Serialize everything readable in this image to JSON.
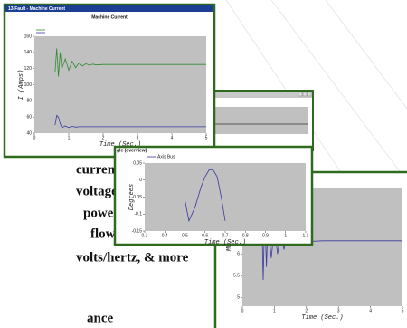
{
  "window_titles": [
    "13-Fault - Machine Current"
  ],
  "background_text": [
    "current",
    "voltage",
    "power",
    "flow",
    "volts/hertz, & more",
    "ance"
  ],
  "chart_data": [
    {
      "type": "line",
      "title": "Machine Current",
      "ylabel": "I (Amps)",
      "xlabel": "Time (Sec.)",
      "xlim": [
        0,
        5
      ],
      "xticks": [
        0,
        1,
        2,
        3,
        4,
        5
      ],
      "ylim": [
        40,
        160
      ],
      "yticks": [
        40,
        60,
        80,
        100,
        120,
        140,
        160
      ],
      "x": [
        0.6,
        0.65,
        0.7,
        0.75,
        0.8,
        0.9,
        1.0,
        1.1,
        1.2,
        1.3,
        1.4,
        1.5,
        1.6,
        1.7,
        1.8,
        2.0,
        2.5,
        3,
        4,
        5
      ],
      "series": [
        {
          "color": "#2e8b2e",
          "values": [
            115,
            145,
            110,
            140,
            120,
            132,
            118,
            129,
            121,
            127,
            123,
            126,
            124,
            125.5,
            124.5,
            125,
            125,
            125,
            125,
            125
          ]
        },
        {
          "color": "#3a3aa0",
          "values": [
            50,
            62,
            60,
            52,
            47,
            49,
            47,
            48.5,
            47.5,
            48,
            48,
            48,
            48,
            48,
            48,
            48,
            48,
            48,
            48,
            48
          ]
        }
      ]
    },
    {
      "type": "line",
      "title": "gle (overview)",
      "ylabel": "Degrees",
      "xlabel": "Time (Sec.)",
      "xlim": [
        0.3,
        1.1
      ],
      "xticks": [
        0.3,
        0.4,
        0.5,
        0.6,
        0.7,
        0.8,
        0.9,
        1,
        1.1
      ],
      "ylim": [
        -0.15,
        0.05
      ],
      "yticks": [
        -0.15,
        -0.1,
        -0.05,
        0,
        0.05
      ],
      "x": [
        0.5,
        0.52,
        0.55,
        0.58,
        0.6,
        0.62,
        0.64,
        0.66,
        0.68,
        0.7
      ],
      "series": [
        {
          "name": "Axis Bus",
          "color": "#3a3aa0",
          "values": [
            -0.06,
            -0.12,
            -0.08,
            -0.02,
            0.01,
            0.03,
            0.03,
            0.01,
            -0.05,
            -0.12
          ]
        }
      ]
    },
    {
      "type": "line",
      "title": "ctrical Power",
      "ylabel": "MW",
      "xlabel": "Time (Sec.)",
      "xlim": [
        0,
        5
      ],
      "xticks": [
        0,
        1,
        2,
        3,
        4,
        5
      ],
      "ylim": [
        4.8,
        7.5
      ],
      "yticks": [
        5,
        5.5,
        6,
        6.5,
        7
      ],
      "x": [
        0,
        0.55,
        0.6,
        0.65,
        0.7,
        0.75,
        0.8,
        0.9,
        1.0,
        1.1,
        1.2,
        1.3,
        1.4,
        1.6,
        1.8,
        2.0,
        2.5,
        3,
        4,
        5
      ],
      "series": [
        {
          "color": "#3a3aa0",
          "values": [
            6.3,
            6.3,
            7.2,
            5.4,
            7.0,
            5.7,
            6.8,
            5.9,
            6.6,
            6.0,
            6.5,
            6.1,
            6.4,
            6.2,
            6.35,
            6.28,
            6.3,
            6.3,
            6.3,
            6.3
          ]
        }
      ]
    }
  ]
}
